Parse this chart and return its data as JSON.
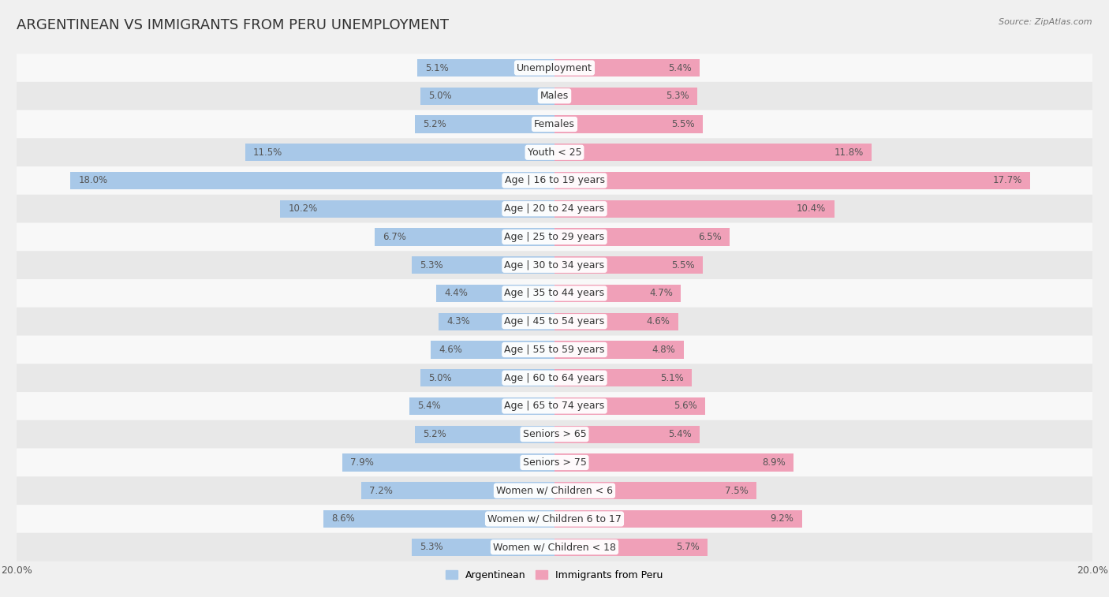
{
  "title": "ARGENTINEAN VS IMMIGRANTS FROM PERU UNEMPLOYMENT",
  "source": "Source: ZipAtlas.com",
  "categories": [
    "Unemployment",
    "Males",
    "Females",
    "Youth < 25",
    "Age | 16 to 19 years",
    "Age | 20 to 24 years",
    "Age | 25 to 29 years",
    "Age | 30 to 34 years",
    "Age | 35 to 44 years",
    "Age | 45 to 54 years",
    "Age | 55 to 59 years",
    "Age | 60 to 64 years",
    "Age | 65 to 74 years",
    "Seniors > 65",
    "Seniors > 75",
    "Women w/ Children < 6",
    "Women w/ Children 6 to 17",
    "Women w/ Children < 18"
  ],
  "argentinean": [
    5.1,
    5.0,
    5.2,
    11.5,
    18.0,
    10.2,
    6.7,
    5.3,
    4.4,
    4.3,
    4.6,
    5.0,
    5.4,
    5.2,
    7.9,
    7.2,
    8.6,
    5.3
  ],
  "peru": [
    5.4,
    5.3,
    5.5,
    11.8,
    17.7,
    10.4,
    6.5,
    5.5,
    4.7,
    4.6,
    4.8,
    5.1,
    5.6,
    5.4,
    8.9,
    7.5,
    9.2,
    5.7
  ],
  "arg_color": "#a8c8e8",
  "peru_color": "#f0a0b8",
  "axis_max": 20.0,
  "background_color": "#f0f0f0",
  "row_bg_light": "#f8f8f8",
  "row_bg_dark": "#e8e8e8",
  "title_fontsize": 13,
  "label_fontsize": 9,
  "value_fontsize": 8.5
}
